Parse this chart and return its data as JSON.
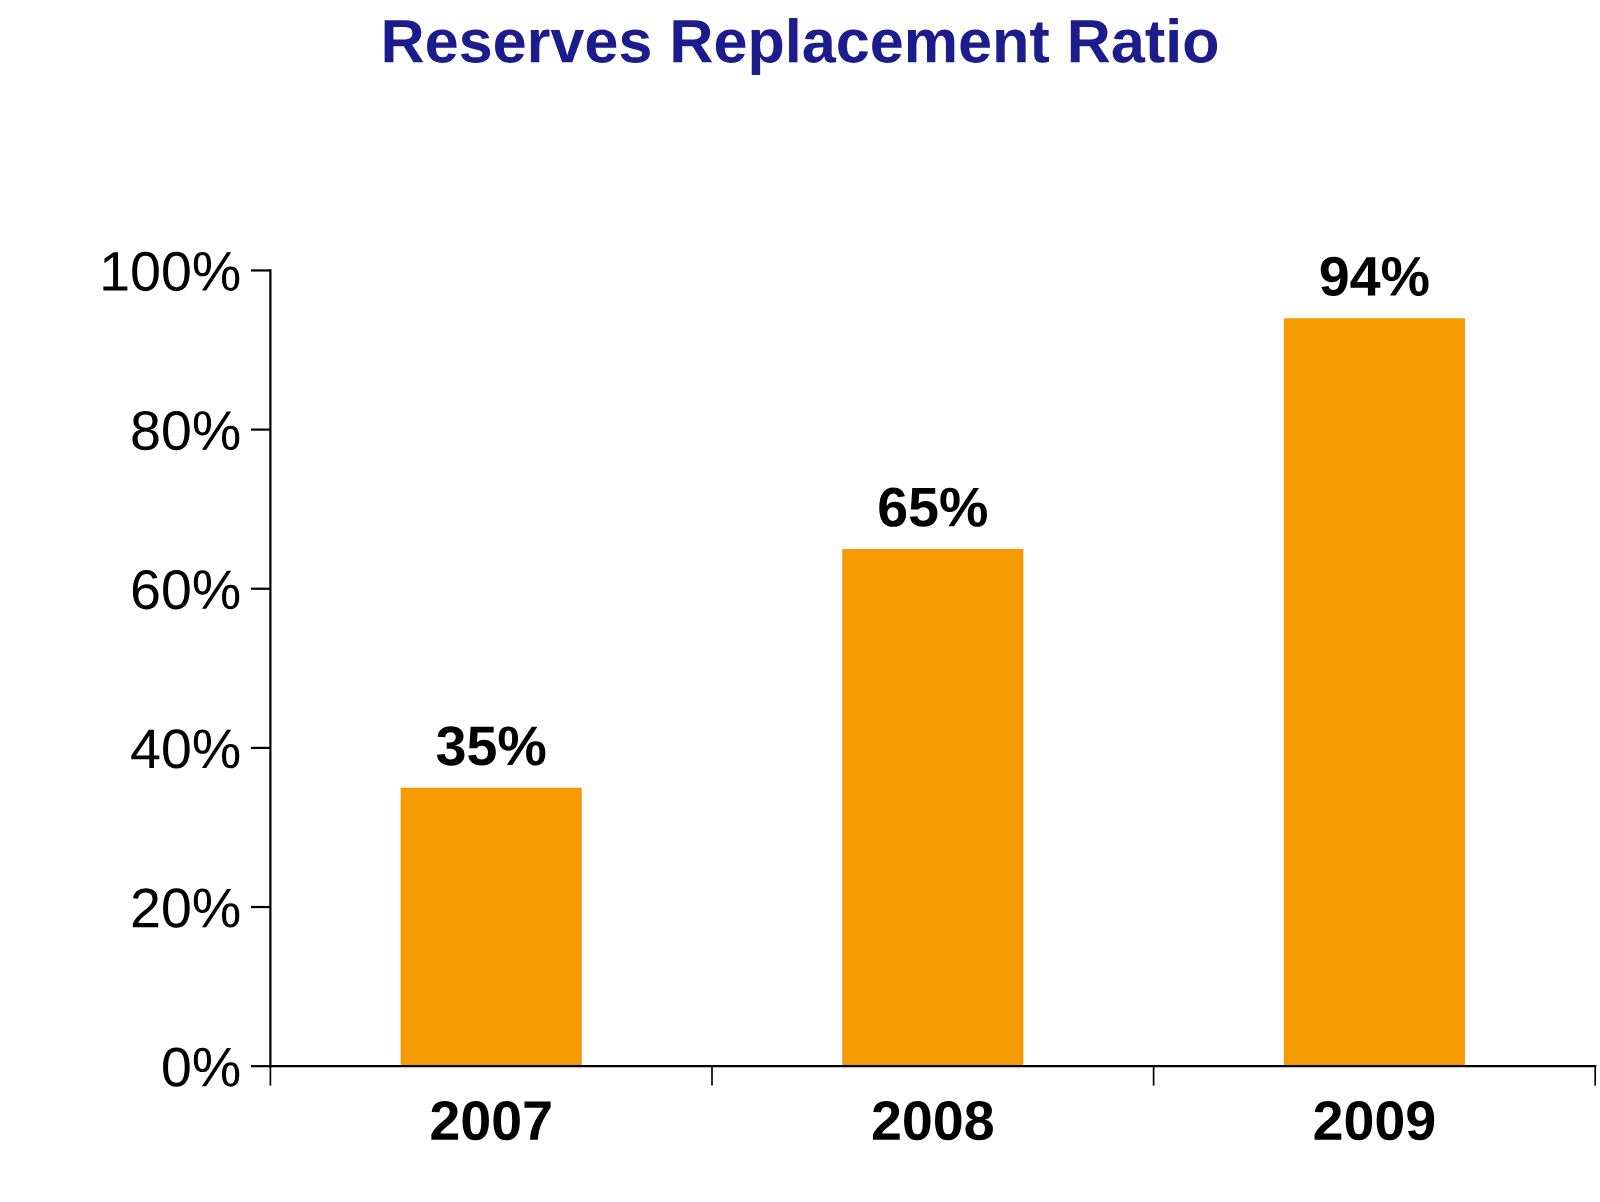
{
  "chart_data": {
    "type": "bar",
    "title": "Reserves Replacement Ratio",
    "categories": [
      "2007",
      "2008",
      "2009"
    ],
    "values": [
      35,
      65,
      94
    ],
    "color": "#f59a00",
    "value_labels": [
      "35%",
      "65%",
      "94%"
    ],
    "ylim": [
      0,
      100
    ],
    "yticks": [
      {
        "value": 0,
        "label": "0%"
      },
      {
        "value": 20,
        "label": "20%"
      },
      {
        "value": 40,
        "label": "40%"
      },
      {
        "value": 60,
        "label": "60%"
      },
      {
        "value": 80,
        "label": "80%"
      },
      {
        "value": 100,
        "label": "100%"
      }
    ],
    "grid": false,
    "legend": false
  }
}
